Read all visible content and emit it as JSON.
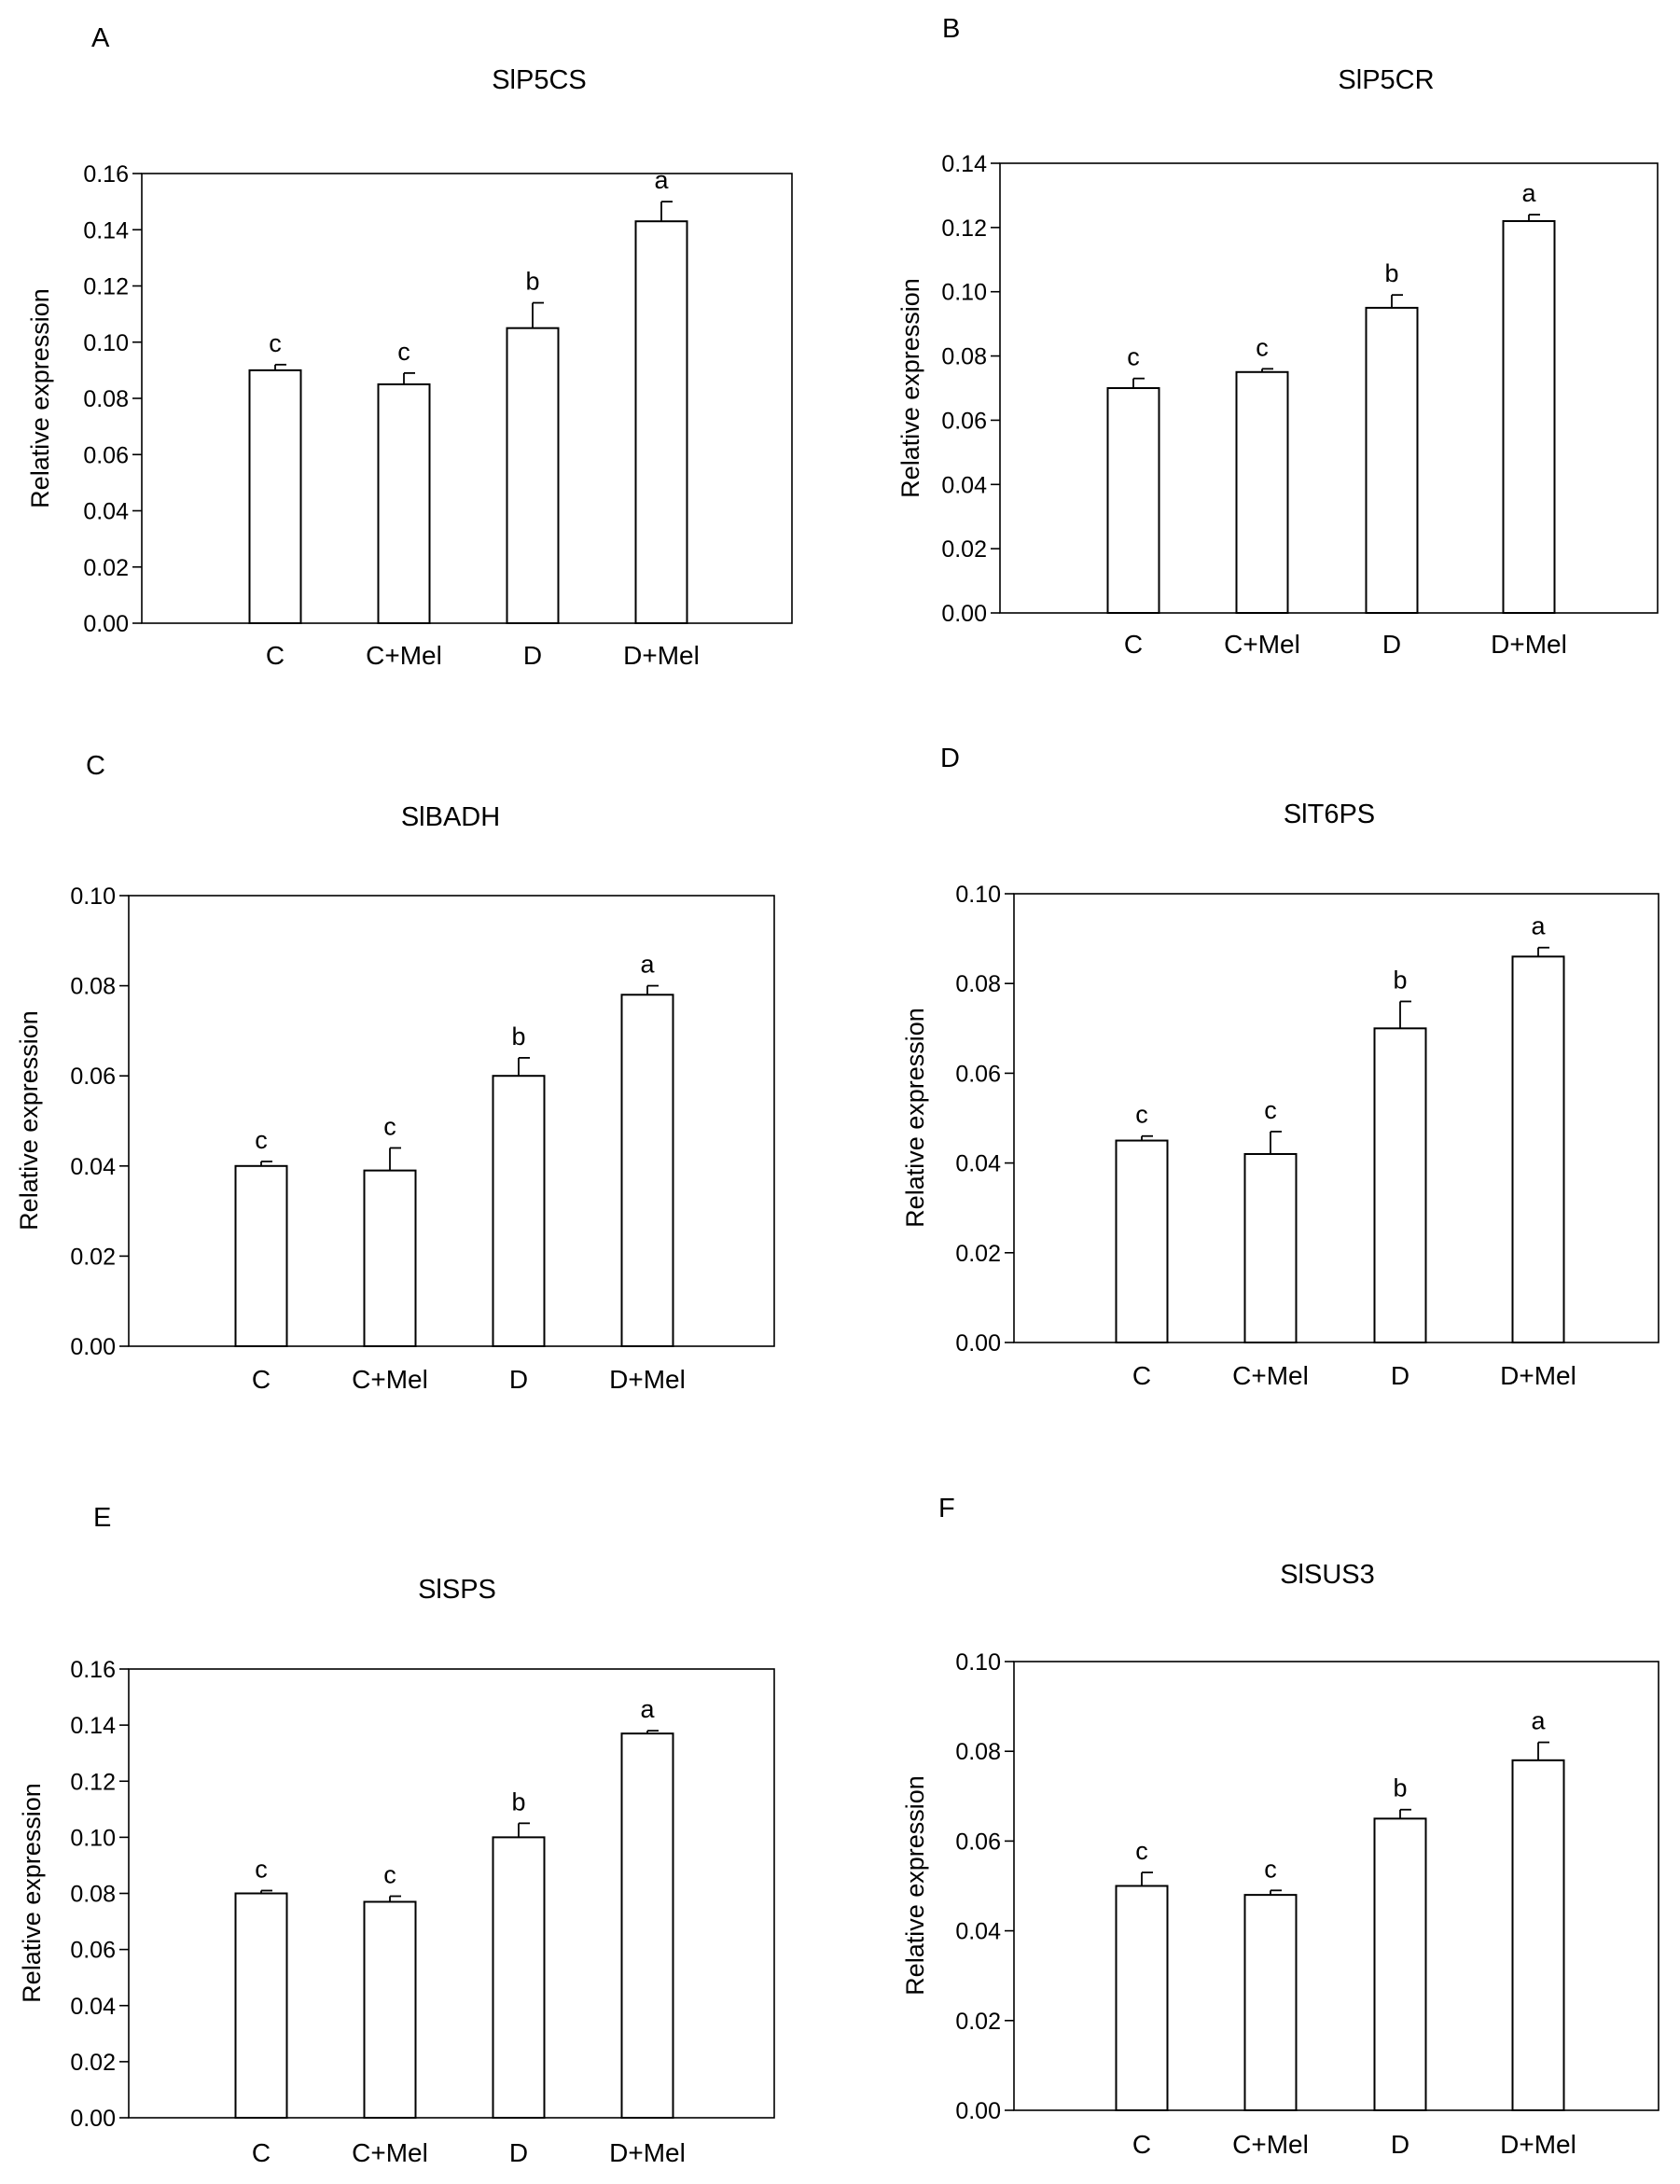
{
  "chart_data": [
    {
      "panel": "A",
      "title": "SlP5CS",
      "type": "bar",
      "ylabel": "Relative expression",
      "xlabel": "",
      "ylim": [
        0,
        0.16
      ],
      "yticks": [
        "0.00",
        "0.02",
        "0.04",
        "0.06",
        "0.08",
        "0.10",
        "0.12",
        "0.14",
        "0.16"
      ],
      "categories": [
        "C",
        "C+Mel",
        "D",
        "D+Mel"
      ],
      "values": [
        0.09,
        0.085,
        0.105,
        0.143
      ],
      "errors": [
        0.002,
        0.004,
        0.009,
        0.007
      ],
      "letters": [
        "c",
        "c",
        "b",
        "a"
      ]
    },
    {
      "panel": "B",
      "title": "SlP5CR",
      "type": "bar",
      "ylabel": "Relative expression",
      "xlabel": "",
      "ylim": [
        0,
        0.14
      ],
      "yticks": [
        "0.00",
        "0.02",
        "0.04",
        "0.06",
        "0.08",
        "0.10",
        "0.12",
        "0.14"
      ],
      "categories": [
        "C",
        "C+Mel",
        "D",
        "D+Mel"
      ],
      "values": [
        0.07,
        0.075,
        0.095,
        0.122
      ],
      "errors": [
        0.003,
        0.001,
        0.004,
        0.002
      ],
      "letters": [
        "c",
        "c",
        "b",
        "a"
      ]
    },
    {
      "panel": "C",
      "title": "SlBADH",
      "type": "bar",
      "ylabel": "Relative expression",
      "xlabel": "",
      "ylim": [
        0,
        0.1
      ],
      "yticks": [
        "0.00",
        "0.02",
        "0.04",
        "0.06",
        "0.08",
        "0.10"
      ],
      "categories": [
        "C",
        "C+Mel",
        "D",
        "D+Mel"
      ],
      "values": [
        0.04,
        0.039,
        0.06,
        0.078
      ],
      "errors": [
        0.001,
        0.005,
        0.004,
        0.002
      ],
      "letters": [
        "c",
        "c",
        "b",
        "a"
      ]
    },
    {
      "panel": "D",
      "title": "SlT6PS",
      "type": "bar",
      "ylabel": "Relative expression",
      "xlabel": "",
      "ylim": [
        0,
        0.1
      ],
      "yticks": [
        "0.00",
        "0.02",
        "0.04",
        "0.06",
        "0.08",
        "0.10"
      ],
      "categories": [
        "C",
        "C+Mel",
        "D",
        "D+Mel"
      ],
      "values": [
        0.045,
        0.042,
        0.07,
        0.086
      ],
      "errors": [
        0.001,
        0.005,
        0.006,
        0.002
      ],
      "letters": [
        "c",
        "c",
        "b",
        "a"
      ]
    },
    {
      "panel": "E",
      "title": "SlSPS",
      "type": "bar",
      "ylabel": "Relative expression",
      "xlabel": "",
      "ylim": [
        0,
        0.16
      ],
      "yticks": [
        "0.00",
        "0.02",
        "0.04",
        "0.06",
        "0.08",
        "0.10",
        "0.12",
        "0.14",
        "0.16"
      ],
      "categories": [
        "C",
        "C+Mel",
        "D",
        "D+Mel"
      ],
      "values": [
        0.08,
        0.077,
        0.1,
        0.137
      ],
      "errors": [
        0.001,
        0.002,
        0.005,
        0.001
      ],
      "letters": [
        "c",
        "c",
        "b",
        "a"
      ]
    },
    {
      "panel": "F",
      "title": "SlSUS3",
      "type": "bar",
      "ylabel": "Relative expression",
      "xlabel": "",
      "ylim": [
        0,
        0.1
      ],
      "yticks": [
        "0.00",
        "0.02",
        "0.04",
        "0.06",
        "0.08",
        "0.10"
      ],
      "categories": [
        "C",
        "C+Mel",
        "D",
        "D+Mel"
      ],
      "values": [
        0.05,
        0.048,
        0.065,
        0.078
      ],
      "errors": [
        0.003,
        0.001,
        0.002,
        0.004
      ],
      "letters": [
        "c",
        "c",
        "b",
        "a"
      ]
    }
  ]
}
